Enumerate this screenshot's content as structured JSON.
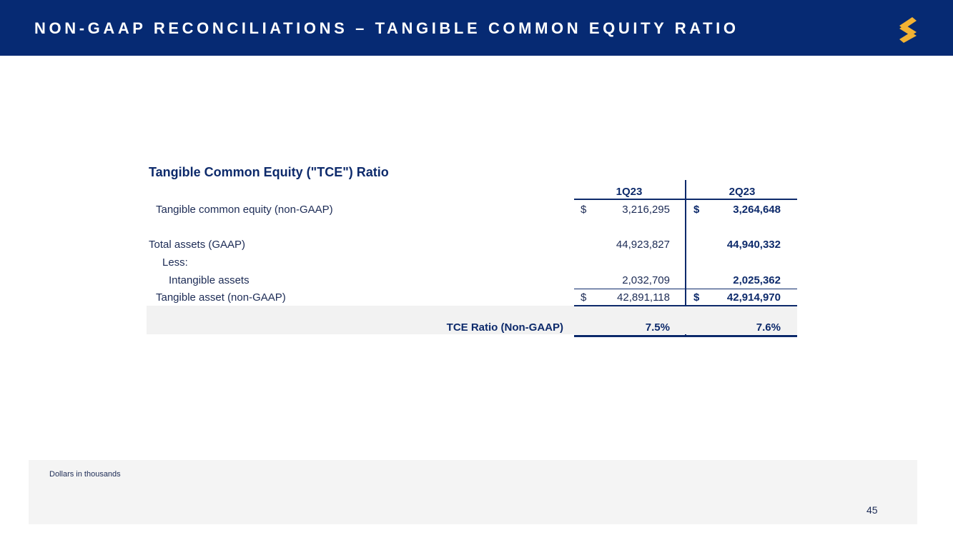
{
  "header": {
    "title": "NON-GAAP RECONCILIATIONS – TANGIBLE COMMON EQUITY RATIO",
    "brand_color": "#062a73",
    "logo_accent": "#f2b233"
  },
  "table": {
    "title": "Tangible Common Equity (\"TCE\") Ratio",
    "columns": [
      "1Q23",
      "2Q23"
    ],
    "rows": [
      {
        "label": "Tangible common equity (non-GAAP)",
        "q1_cur": "$",
        "q1": "3,216,295",
        "q2_cur": "$",
        "q2": "3,264,648"
      },
      {
        "label": "Total assets (GAAP)",
        "q1": "44,923,827",
        "q2": "44,940,332"
      },
      {
        "label": "Less:"
      },
      {
        "label": "Intangible assets",
        "q1": "2,032,709",
        "q2": "2,025,362"
      },
      {
        "label": "Tangible asset (non-GAAP)",
        "q1_cur": "$",
        "q1": "42,891,118",
        "q2_cur": "$",
        "q2": "42,914,970"
      },
      {
        "label": "TCE Ratio (Non-GAAP)",
        "q1": "7.5%",
        "q2": "7.6%"
      }
    ]
  },
  "footer": {
    "note": "Dollars in thousands",
    "page_number": "45"
  }
}
